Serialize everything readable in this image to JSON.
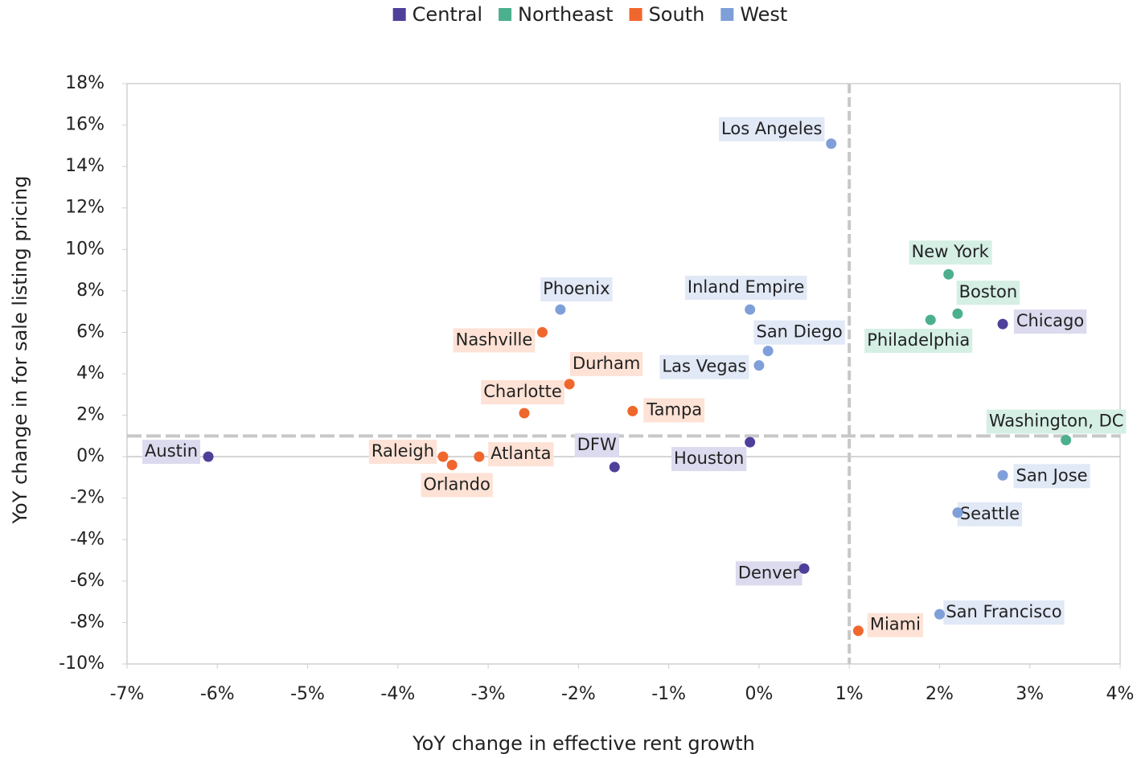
{
  "chart_data": {
    "type": "scatter",
    "xlabel": "YoY change in effective rent growth",
    "ylabel": "YoY change in for sale listing pricing",
    "xlim": [
      -7,
      4
    ],
    "ylim": [
      -10,
      18
    ],
    "xticks": [
      {
        "value": -7,
        "label": "-7%"
      },
      {
        "value": -6,
        "label": "-6%"
      },
      {
        "value": -5,
        "label": "-5%"
      },
      {
        "value": -4,
        "label": "-4%"
      },
      {
        "value": -3,
        "label": "-3%"
      },
      {
        "value": -2,
        "label": "-2%"
      },
      {
        "value": -1,
        "label": "-1%"
      },
      {
        "value": 0,
        "label": "0%"
      },
      {
        "value": 1,
        "label": "1%"
      },
      {
        "value": 2,
        "label": "2%"
      },
      {
        "value": 3,
        "label": "3%"
      },
      {
        "value": 4,
        "label": "4%"
      }
    ],
    "yticks": [
      {
        "value": -10,
        "label": "-10%"
      },
      {
        "value": -8,
        "label": "-8%"
      },
      {
        "value": -6,
        "label": "-6%"
      },
      {
        "value": -4,
        "label": "-4%"
      },
      {
        "value": -2,
        "label": "-2%"
      },
      {
        "value": 0,
        "label": "0%"
      },
      {
        "value": 2,
        "label": "2%"
      },
      {
        "value": 4,
        "label": "4%"
      },
      {
        "value": 6,
        "label": "6%"
      },
      {
        "value": 8,
        "label": "8%"
      },
      {
        "value": 10,
        "label": "10%"
      },
      {
        "value": 12,
        "label": "12%"
      },
      {
        "value": 14,
        "label": "14%"
      },
      {
        "value": 16,
        "label": "16%"
      },
      {
        "value": 18,
        "label": "18%"
      }
    ],
    "reference_lines": {
      "x": 1,
      "y": 1
    },
    "legend": "top",
    "series": [
      {
        "name": "Central",
        "color": "#4f3f9b",
        "label_color": "#dcdaee",
        "labels": [
          "Austin",
          "DFW",
          "Houston",
          "Chicago",
          "Denver"
        ],
        "x": [
          -6.1,
          -1.6,
          -0.1,
          2.7,
          0.5
        ],
        "values": [
          0,
          -0.5,
          0.7,
          6.4,
          -5.4
        ]
      },
      {
        "name": "Northeast",
        "color": "#4cb08f",
        "label_color": "#d5efe5",
        "labels": [
          "New York",
          "Boston",
          "Philadelphia",
          "Washington, DC"
        ],
        "x": [
          2.1,
          2.2,
          1.9,
          3.4
        ],
        "values": [
          8.8,
          6.9,
          6.6,
          0.8
        ]
      },
      {
        "name": "South",
        "color": "#f0672d",
        "label_color": "#fde2d5",
        "labels": [
          "Nashville",
          "Durham",
          "Charlotte",
          "Tampa",
          "Raleigh",
          "Orlando",
          "Atlanta",
          "Miami"
        ],
        "x": [
          -2.4,
          -2.1,
          -2.6,
          -1.4,
          -3.5,
          -3.4,
          -3.1,
          1.1
        ],
        "values": [
          6.0,
          3.5,
          2.1,
          2.2,
          0,
          -0.4,
          0,
          -8.4
        ]
      },
      {
        "name": "West",
        "color": "#7f9fd8",
        "label_color": "#e1e8f6",
        "labels": [
          "Los Angeles",
          "Phoenix",
          "Inland Empire",
          "San Diego",
          "Las Vegas",
          "San Jose",
          "Seattle",
          "San Francisco"
        ],
        "x": [
          0.8,
          -2.2,
          -0.1,
          0.1,
          0.0,
          2.7,
          2.2,
          2.0
        ],
        "values": [
          15.1,
          7.1,
          7.1,
          5.1,
          4.4,
          -0.9,
          -2.7,
          -7.6
        ]
      }
    ]
  }
}
